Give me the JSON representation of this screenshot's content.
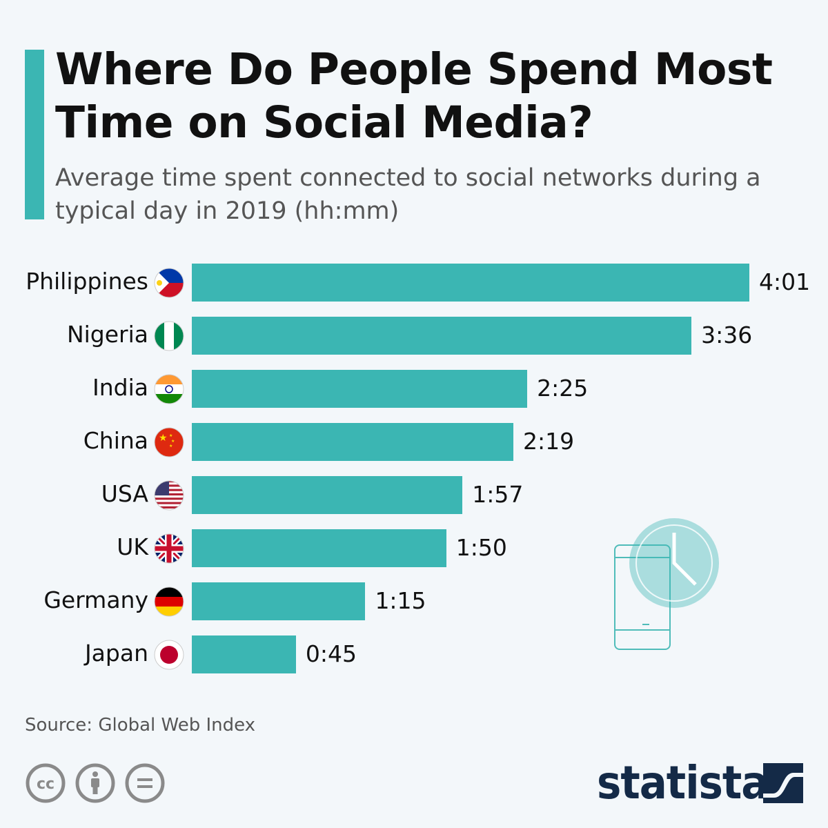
{
  "title": "Where Do People Spend Most Time on Social Media?",
  "subtitle": "Average time spent connected to social networks during a typical day in 2019 (hh:mm)",
  "source": "Source: Global Web Index",
  "logo": "statista",
  "colors": {
    "bar": "#3bb6b3",
    "accent": "#3bb6b3",
    "logo": "#142a47"
  },
  "chart_data": {
    "type": "bar",
    "orientation": "horizontal",
    "title": "Where Do People Spend Most Time on Social Media?",
    "subtitle": "Average time spent connected to social networks during a typical day in 2019 (hh:mm)",
    "unit": "minutes",
    "categories": [
      "Philippines",
      "Nigeria",
      "India",
      "China",
      "USA",
      "UK",
      "Germany",
      "Japan"
    ],
    "values": [
      241,
      216,
      145,
      139,
      117,
      110,
      75,
      45
    ],
    "labels": [
      "4:01",
      "3:36",
      "2:25",
      "2:19",
      "1:57",
      "1:50",
      "1:15",
      "0:45"
    ],
    "flags": [
      "ph",
      "ng",
      "in",
      "cn",
      "us",
      "uk",
      "de",
      "jp"
    ],
    "xlim": [
      0,
      241
    ]
  }
}
